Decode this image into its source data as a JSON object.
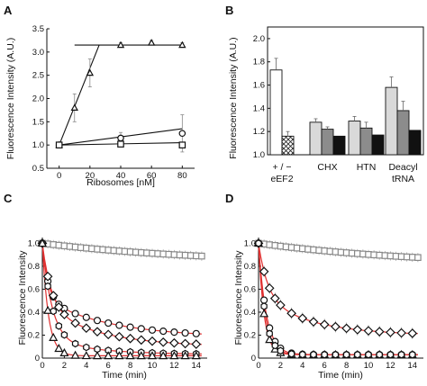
{
  "chart_data": [
    {
      "panel": "A",
      "type": "scatter",
      "xlabel": "Ribosomes [nM]",
      "ylabel": "Fluorescence Intensity (A.U.)",
      "xlim": [
        -8,
        88
      ],
      "ylim": [
        0.5,
        3.5
      ],
      "xticks": [
        0,
        20,
        40,
        60,
        80
      ],
      "yticks": [
        0.5,
        1.0,
        1.5,
        2.0,
        2.5,
        3.0,
        3.5
      ],
      "ytick_labels": [
        "0.5",
        "1.0",
        "1.5",
        "2.0",
        "2.5",
        "3.0",
        "3.5"
      ],
      "series": [
        {
          "marker": "triangle",
          "x": [
            0,
            10,
            20,
            40,
            60,
            80
          ],
          "y": [
            1.0,
            1.8,
            2.55,
            3.15,
            3.2,
            3.15
          ],
          "err": [
            0,
            0.3,
            0.3,
            0.05,
            0.05,
            0.05
          ]
        },
        {
          "marker": "circle",
          "x": [
            0,
            40,
            80
          ],
          "y": [
            1.0,
            1.15,
            1.25
          ],
          "err": [
            0,
            0.12,
            0.4
          ]
        },
        {
          "marker": "square",
          "x": [
            0,
            40,
            80
          ],
          "y": [
            1.0,
            1.02,
            1.0
          ],
          "err": [
            0,
            0.05,
            0.05
          ]
        }
      ],
      "fit_lines": [
        {
          "x": [
            0,
            26
          ],
          "y": [
            1.0,
            3.15
          ]
        },
        {
          "x": [
            10,
            80
          ],
          "y": [
            3.15,
            3.15
          ]
        },
        {
          "x": [
            0,
            80
          ],
          "y": [
            1.0,
            1.35
          ]
        },
        {
          "x": [
            0,
            80
          ],
          "y": [
            1.0,
            1.05
          ]
        }
      ]
    },
    {
      "panel": "B",
      "type": "bar",
      "ylabel": "Fluorescence Intensity (A.U.)",
      "ylim": [
        1.0,
        2.1
      ],
      "yticks": [
        1.0,
        1.2,
        1.4,
        1.6,
        1.8,
        2.0
      ],
      "ytick_labels": [
        "1.0",
        "1.2",
        "1.4",
        "1.6",
        "1.8",
        "2.0"
      ],
      "groups": [
        {
          "label_lines": [
            "+ / −",
            "eEF2"
          ],
          "bars": [
            {
              "value": 1.73,
              "err": 0.1,
              "style": "white"
            },
            {
              "value": 1.16,
              "err": 0.04,
              "style": "hatch"
            }
          ]
        },
        {
          "label_lines": [
            "CHX"
          ],
          "bars": [
            {
              "value": 1.28,
              "err": 0.03,
              "style": "light"
            },
            {
              "value": 1.22,
              "err": 0.02,
              "style": "mid"
            },
            {
              "value": 1.16,
              "err": 0,
              "style": "black"
            }
          ]
        },
        {
          "label_lines": [
            "HTN"
          ],
          "bars": [
            {
              "value": 1.29,
              "err": 0.04,
              "style": "light"
            },
            {
              "value": 1.23,
              "err": 0.05,
              "style": "mid"
            },
            {
              "value": 1.17,
              "err": 0,
              "style": "black"
            }
          ]
        },
        {
          "label_lines": [
            "Deacyl",
            "tRNA"
          ],
          "bars": [
            {
              "value": 1.58,
              "err": 0.09,
              "style": "light"
            },
            {
              "value": 1.38,
              "err": 0.08,
              "style": "mid"
            },
            {
              "value": 1.21,
              "err": 0,
              "style": "black"
            }
          ]
        }
      ]
    },
    {
      "panel": "C",
      "type": "scatter",
      "xlabel": "Time (min)",
      "ylabel": "Fluorescence Intensity",
      "xlim": [
        0,
        15
      ],
      "ylim": [
        0,
        1.05
      ],
      "xticks": [
        0,
        2,
        4,
        6,
        8,
        10,
        12,
        14
      ],
      "yticks": [
        0,
        0.2,
        0.4,
        0.6,
        0.8,
        1.0
      ],
      "ytick_labels": [
        "0",
        "0.2",
        "0.4",
        "0.6",
        "0.8",
        "1.0"
      ],
      "series": [
        {
          "marker": "square",
          "end": 0.82,
          "amp": [
            0.18
          ],
          "tau": [
            15
          ],
          "err": 0.04,
          "color": "#888888",
          "size": 3.2
        },
        {
          "marker": "circle",
          "end": 0.18,
          "amp": [
            0.48,
            0.34
          ],
          "tau": [
            0.5,
            6.0
          ],
          "err": 0.02,
          "color": "#111111",
          "size": 3.5
        },
        {
          "marker": "diamond",
          "end": 0.1,
          "amp": [
            0.55,
            0.35
          ],
          "tau": [
            0.8,
            5.0
          ],
          "err": 0.02,
          "color": "#111111",
          "size": 4.5
        },
        {
          "marker": "hexagon",
          "end": 0.03,
          "amp": [
            0.85,
            0.12
          ],
          "tau": [
            0.9,
            5.0
          ],
          "err": 0.02,
          "color": "#111111",
          "size": 3.6
        },
        {
          "marker": "triangle",
          "end": 0.02,
          "amp": [
            0.98
          ],
          "tau": [
            0.55
          ],
          "err": 0.02,
          "color": "#111111",
          "size": 4.0
        }
      ]
    },
    {
      "panel": "D",
      "type": "scatter",
      "xlabel": "Time (min)",
      "ylabel": "Fluorescence Intensity",
      "xlim": [
        0,
        15
      ],
      "ylim": [
        0,
        1.05
      ],
      "xticks": [
        0,
        2,
        4,
        6,
        8,
        10,
        12,
        14
      ],
      "yticks": [
        0,
        0.2,
        0.4,
        0.6,
        0.8,
        1.0
      ],
      "ytick_labels": [
        "0",
        "0.2",
        "0.4",
        "0.6",
        "0.8",
        "1.0"
      ],
      "series": [
        {
          "marker": "square",
          "end": 0.8,
          "amp": [
            0.2
          ],
          "tau": [
            15
          ],
          "err": 0.04,
          "color": "#888888",
          "size": 3.2
        },
        {
          "marker": "diamond",
          "end": 0.2,
          "amp": [
            0.45,
            0.35
          ],
          "tau": [
            0.8,
            4.5
          ],
          "err": 0.05,
          "color": "#111111",
          "size": 4.5
        },
        {
          "marker": "circle",
          "end": 0.03,
          "amp": [
            0.97
          ],
          "tau": [
            0.7
          ],
          "err": 0.03,
          "color": "#111111",
          "size": 3.5
        },
        {
          "marker": "triangle",
          "end": 0.03,
          "amp": [
            0.97
          ],
          "tau": [
            0.5
          ],
          "err": 0.02,
          "color": "#111111",
          "size": 4.0
        },
        {
          "marker": "hexagon",
          "end": 0.03,
          "amp": [
            0.97
          ],
          "tau": [
            0.6
          ],
          "err": 0.02,
          "color": "#111111",
          "size": 3.6
        }
      ]
    }
  ],
  "fit_color": "#e03030"
}
